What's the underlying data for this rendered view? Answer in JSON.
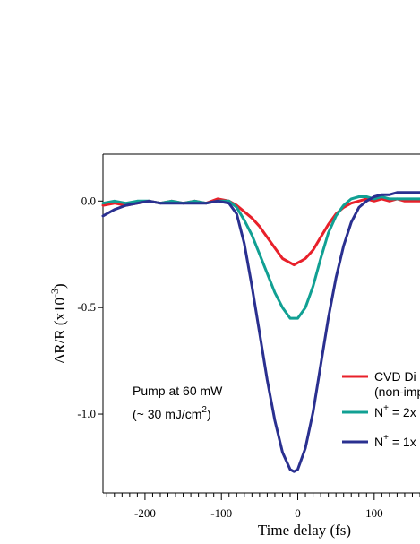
{
  "chart_data": {
    "type": "line",
    "xlabel": "Time delay (fs)",
    "ylabel_main": "ΔR/R (x10",
    "ylabel_exp": "-3",
    "ylabel_close": ")",
    "xlim": [
      -255,
      160
    ],
    "ylim": [
      -1.37,
      0.22
    ],
    "x_ticks": [
      -200,
      -100,
      0,
      100
    ],
    "x_tick_labels": [
      "-200",
      "-100",
      "0",
      "100"
    ],
    "y_ticks": [
      0.0,
      -0.5,
      -1.0
    ],
    "y_tick_labels": [
      "0.0",
      "-0.5",
      "-1.0"
    ],
    "grid": false,
    "legend_position": "bottom-right",
    "annotation": {
      "line1": "Pump at 60 mW",
      "line2_open": "(~ 30 mJ/cm",
      "line2_exp": "2",
      "line2_close": ")"
    },
    "series": [
      {
        "label_line1": "CVD Di",
        "label_line2": "(non-imp",
        "color": "#e8202a",
        "x": [
          -255,
          -240,
          -225,
          -210,
          -195,
          -180,
          -165,
          -150,
          -135,
          -120,
          -105,
          -90,
          -80,
          -70,
          -60,
          -50,
          -40,
          -30,
          -20,
          -10,
          -5,
          0,
          5,
          10,
          20,
          30,
          40,
          50,
          60,
          70,
          80,
          90,
          100,
          110,
          120,
          130,
          140,
          150,
          160
        ],
        "y": [
          -0.02,
          -0.01,
          -0.02,
          -0.01,
          0.0,
          -0.01,
          0.0,
          -0.01,
          0.0,
          -0.01,
          0.01,
          0.0,
          -0.02,
          -0.05,
          -0.08,
          -0.12,
          -0.17,
          -0.22,
          -0.27,
          -0.29,
          -0.3,
          -0.29,
          -0.28,
          -0.27,
          -0.23,
          -0.17,
          -0.11,
          -0.06,
          -0.03,
          -0.01,
          0.0,
          0.01,
          0.0,
          0.01,
          0.0,
          0.01,
          0.0,
          0.0,
          0.0
        ]
      },
      {
        "label_prefix": "N",
        "label_sup": "+",
        "label_suffix": " = 2x",
        "color": "#11a093",
        "x": [
          -255,
          -240,
          -225,
          -210,
          -195,
          -180,
          -165,
          -150,
          -135,
          -120,
          -105,
          -90,
          -80,
          -70,
          -60,
          -50,
          -40,
          -30,
          -20,
          -10,
          0,
          10,
          20,
          30,
          40,
          50,
          60,
          70,
          80,
          90,
          100,
          110,
          120,
          130,
          140,
          150,
          160
        ],
        "y": [
          -0.01,
          0.0,
          -0.01,
          0.0,
          0.0,
          -0.01,
          0.0,
          -0.01,
          0.0,
          -0.01,
          0.0,
          0.0,
          -0.03,
          -0.09,
          -0.16,
          -0.25,
          -0.34,
          -0.43,
          -0.5,
          -0.55,
          -0.55,
          -0.5,
          -0.4,
          -0.27,
          -0.15,
          -0.07,
          -0.02,
          0.01,
          0.02,
          0.02,
          0.01,
          0.02,
          0.01,
          0.01,
          0.01,
          0.01,
          0.01
        ]
      },
      {
        "label_prefix": "N",
        "label_sup": "+",
        "label_suffix": " = 1x",
        "color": "#2a3090",
        "x": [
          -255,
          -240,
          -225,
          -210,
          -195,
          -180,
          -165,
          -150,
          -135,
          -120,
          -105,
          -90,
          -80,
          -70,
          -60,
          -50,
          -40,
          -30,
          -20,
          -10,
          -5,
          0,
          10,
          20,
          30,
          40,
          50,
          60,
          70,
          80,
          90,
          100,
          110,
          120,
          130,
          140,
          150,
          160
        ],
        "y": [
          -0.07,
          -0.04,
          -0.02,
          -0.01,
          0.0,
          -0.01,
          -0.01,
          -0.01,
          -0.01,
          -0.01,
          0.0,
          -0.01,
          -0.06,
          -0.2,
          -0.4,
          -0.62,
          -0.84,
          -1.03,
          -1.18,
          -1.26,
          -1.27,
          -1.26,
          -1.16,
          -0.99,
          -0.77,
          -0.55,
          -0.36,
          -0.21,
          -0.1,
          -0.03,
          0.0,
          0.02,
          0.03,
          0.03,
          0.04,
          0.04,
          0.04,
          0.04
        ]
      }
    ]
  }
}
